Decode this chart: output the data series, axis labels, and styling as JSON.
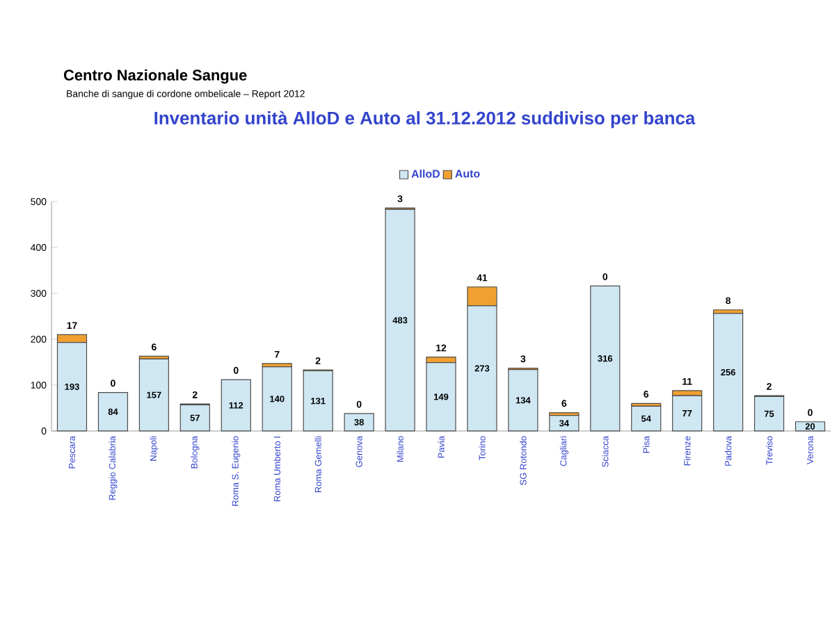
{
  "chart_data": {
    "type": "bar",
    "stacked": true,
    "annotations": [
      "Centro Nazionale Sangue",
      "Banche di sangue di cordone ombelicale – Report 2012"
    ],
    "title": "Inventario unità AlloD e Auto al 31.12.2012 suddiviso per banca",
    "categories": [
      "Pescara",
      "Reggio Calabria",
      "Napoli",
      "Bologna",
      "Roma S. Eugenio",
      "Roma Umberto I",
      "Roma Gemelli",
      "Genova",
      "Milano",
      "Pavia",
      "Torino",
      "SG Rotondo",
      "Cagliari",
      "Sciacca",
      "Pisa",
      "Firenze",
      "Padova",
      "Treviso",
      "Verona"
    ],
    "series": [
      {
        "name": "AlloD",
        "color": "#cfe7f3",
        "values": [
          193,
          84,
          157,
          57,
          112,
          140,
          131,
          38,
          483,
          149,
          273,
          134,
          34,
          316,
          54,
          77,
          256,
          75,
          20
        ]
      },
      {
        "name": "Auto",
        "color": "#f0a030",
        "values": [
          17,
          0,
          6,
          2,
          0,
          7,
          2,
          0,
          3,
          12,
          41,
          3,
          6,
          0,
          6,
          11,
          8,
          2,
          0
        ]
      }
    ],
    "ylim": [
      0,
      500
    ],
    "yticks": [
      0,
      100,
      200,
      300,
      400,
      500
    ],
    "data_labels": true,
    "legend": "top",
    "grid": false
  }
}
